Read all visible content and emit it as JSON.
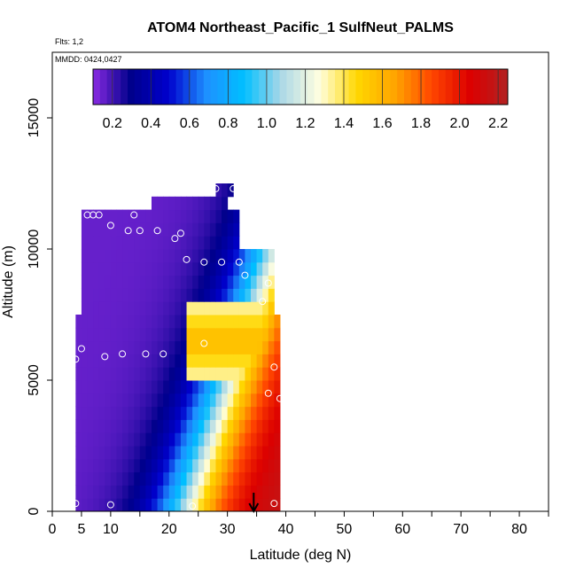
{
  "chart_data": {
    "type": "heatmap",
    "title": "ATOM4 Northeast_Pacific_1 SulfNeut_PALMS",
    "flights_label": "Flts: 1,2",
    "dates_label": "MMDD: 0424,0427",
    "xlabel": "Latitude (deg N)",
    "ylabel": "Altitude (m)",
    "xlim": [
      0,
      85
    ],
    "ylim": [
      0,
      17500
    ],
    "x_ticks": [
      0,
      5,
      10,
      20,
      30,
      40,
      50,
      60,
      70,
      80
    ],
    "x_ticks_unlabeled": [
      15,
      25,
      35,
      45,
      55,
      65,
      75,
      85
    ],
    "y_ticks": [
      0,
      5000,
      10000,
      15000
    ],
    "colorbar": {
      "min": 0.1,
      "max": 2.25,
      "ticks": [
        0.2,
        0.4,
        0.6,
        0.8,
        1.0,
        1.2,
        1.4,
        1.6,
        1.8,
        2.0,
        2.2
      ],
      "tick_labels": [
        "0.2",
        "0.4",
        "0.6",
        "0.8",
        "1.0",
        "1.2",
        "1.4",
        "1.6",
        "1.8",
        "2.0",
        "2.2"
      ],
      "colors": [
        "#8a2be2",
        "#00008b",
        "#0000cd",
        "#1e90ff",
        "#00bfff",
        "#add8e6",
        "#ffffe0",
        "#ffd700",
        "#ffa500",
        "#ff4500",
        "#dc0000",
        "#b22222"
      ]
    },
    "bin_width_deg": 1,
    "bin_height_m": 500,
    "field_regions": [
      {
        "alt_min": 0,
        "alt_max": 7500,
        "lat_min": 4,
        "lat_max": 39
      },
      {
        "alt_min": 7500,
        "alt_max": 10000,
        "lat_min": 5,
        "lat_max": 38
      },
      {
        "alt_min": 10000,
        "alt_max": 11500,
        "lat_min": 5,
        "lat_max": 32
      },
      {
        "alt_min": 11500,
        "alt_max": 12000,
        "lat_min": 17,
        "lat_max": 30
      },
      {
        "alt_min": 12000,
        "alt_max": 12500,
        "lat_min": 28,
        "lat_max": 31
      }
    ],
    "gradient_model": {
      "transition_lat_at_surface": 23,
      "transition_slope_deg_per_km": 1.5,
      "high_value": 2.2,
      "low_value": 0.15,
      "band_lat_at_6500m": 30,
      "band_value": 1.6
    },
    "points": [
      {
        "lat": 4,
        "alt": 300
      },
      {
        "lat": 10,
        "alt": 250
      },
      {
        "lat": 24,
        "alt": 200
      },
      {
        "lat": 38,
        "alt": 300
      },
      {
        "lat": 4,
        "alt": 5800
      },
      {
        "lat": 5,
        "alt": 6200
      },
      {
        "lat": 9,
        "alt": 5900
      },
      {
        "lat": 12,
        "alt": 6000
      },
      {
        "lat": 16,
        "alt": 6000
      },
      {
        "lat": 19,
        "alt": 6000
      },
      {
        "lat": 26,
        "alt": 6400
      },
      {
        "lat": 38,
        "alt": 5500
      },
      {
        "lat": 39,
        "alt": 4300
      },
      {
        "lat": 37,
        "alt": 4500
      },
      {
        "lat": 36,
        "alt": 8000
      },
      {
        "lat": 37,
        "alt": 8700
      },
      {
        "lat": 33,
        "alt": 9000
      },
      {
        "lat": 32,
        "alt": 9500
      },
      {
        "lat": 29,
        "alt": 9500
      },
      {
        "lat": 26,
        "alt": 9500
      },
      {
        "lat": 23,
        "alt": 9600
      },
      {
        "lat": 21,
        "alt": 10400
      },
      {
        "lat": 22,
        "alt": 10600
      },
      {
        "lat": 18,
        "alt": 10700
      },
      {
        "lat": 15,
        "alt": 10700
      },
      {
        "lat": 13,
        "alt": 10700
      },
      {
        "lat": 10,
        "alt": 10900
      },
      {
        "lat": 6,
        "alt": 11300
      },
      {
        "lat": 7,
        "alt": 11300
      },
      {
        "lat": 8,
        "alt": 11300
      },
      {
        "lat": 14,
        "alt": 11300
      },
      {
        "lat": 28,
        "alt": 12300
      },
      {
        "lat": 31,
        "alt": 12300
      }
    ],
    "arrow_lat": 34.5
  }
}
